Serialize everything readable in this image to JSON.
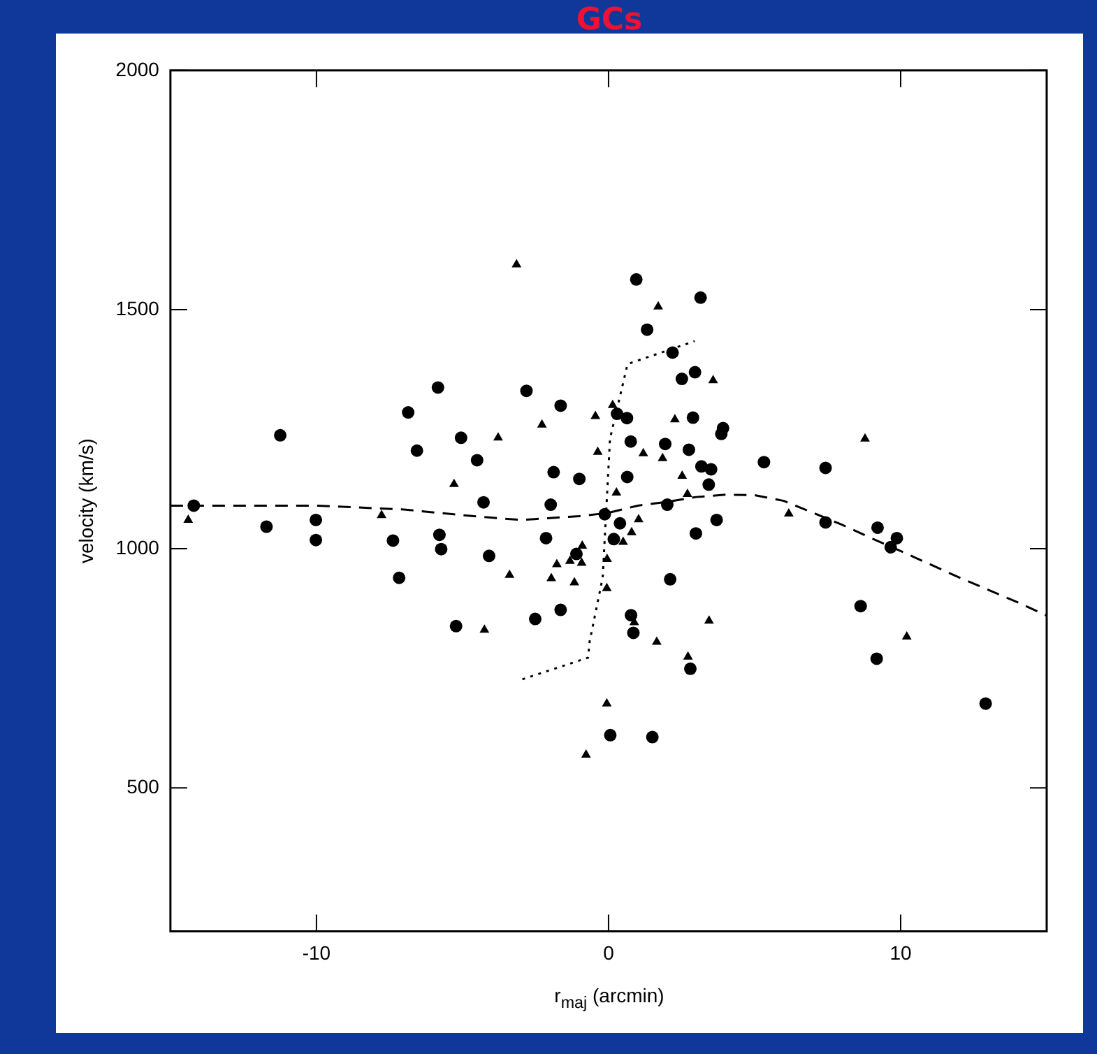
{
  "chart_data": {
    "type": "scatter",
    "title": "GCs",
    "xlabel": "r$_{maj}$ (arcmin)",
    "ylabel": "velocity (km/s)",
    "xlim": [
      -15,
      15
    ],
    "ylim": [
      200,
      2000
    ],
    "xticks": [
      -10,
      0,
      10
    ],
    "yticks": [
      500,
      1000,
      1500,
      2000
    ],
    "grid": false,
    "legend": false,
    "series": [
      {
        "type": "scatter",
        "marker": "circle",
        "color": "#000000",
        "x": [
          -14.2,
          -11.24,
          -11.71,
          -10.02,
          -10.02,
          -6.86,
          -5.84,
          -6.56,
          -5.05,
          -4.5,
          -4.28,
          -5.79,
          -5.73,
          -7.38,
          -4.09,
          -2.81,
          -1.64,
          -1.88,
          -1.0,
          -1.98,
          -2.14,
          -0.13,
          -1.1,
          0.95,
          3.15,
          1.32,
          2.19,
          2.51,
          2.96,
          0.29,
          0.63,
          2.89,
          3.92,
          3.86,
          0.76,
          1.94,
          2.75,
          0.64,
          3.18,
          3.51,
          3.43,
          5.32,
          2.01,
          3.7,
          2.99,
          0.39,
          0.18,
          -7.17,
          -5.22,
          -2.51,
          -1.64,
          0.06,
          2.11,
          0.77,
          0.85,
          2.8,
          1.5,
          7.43,
          7.43,
          9.21,
          9.87,
          9.66,
          8.63,
          9.18,
          12.91
        ],
        "values": [
          1090,
          1237,
          1046,
          1060,
          1018,
          1285,
          1337,
          1205,
          1232,
          1185,
          1097,
          1029,
          999,
          1017,
          985,
          1330,
          1299,
          1160,
          1146,
          1092,
          1022,
          1072,
          989,
          1563,
          1525,
          1458,
          1410,
          1355,
          1369,
          1282,
          1273,
          1274,
          1252,
          1240,
          1224,
          1219,
          1207,
          1150,
          1172,
          1166,
          1134,
          1181,
          1092,
          1060,
          1032,
          1053,
          1020,
          939,
          838,
          853,
          872,
          610,
          936,
          861,
          824,
          749,
          606,
          1169,
          1055,
          1044,
          1022,
          1003,
          880,
          770,
          676
        ]
      },
      {
        "type": "scatter",
        "marker": "triangle",
        "color": "#000000",
        "x": [
          -14.39,
          -3.15,
          -7.77,
          -5.29,
          -3.78,
          -2.28,
          -0.45,
          -0.37,
          -0.9,
          1.7,
          3.58,
          0.14,
          2.27,
          1.19,
          1.85,
          2.52,
          0.27,
          2.7,
          6.17,
          1.03,
          0.79,
          0.5,
          -0.05,
          -1.77,
          -1.32,
          -0.92,
          -3.39,
          -1.96,
          -1.17,
          -0.06,
          -4.25,
          -0.06,
          -0.77,
          0.88,
          3.44,
          1.65,
          2.72,
          8.78,
          10.21
        ],
        "values": [
          1060,
          1594,
          1070,
          1135,
          1232,
          1259,
          1277,
          1202,
          1006,
          1506,
          1352,
          1300,
          1270,
          1199,
          1189,
          1152,
          1117,
          1114,
          1073,
          1061,
          1034,
          1014,
          978,
          967,
          974,
          970,
          945,
          938,
          929,
          917,
          830,
          676,
          569,
          846,
          849,
          805,
          774,
          1230,
          816
        ]
      },
      {
        "type": "line",
        "marker": "none",
        "line_style": "dashed",
        "color": "#000000",
        "x": [
          -15,
          -10,
          -7,
          -5,
          -3,
          -1,
          0,
          1,
          2,
          3,
          4,
          5,
          6,
          7,
          8,
          9,
          10,
          12,
          14,
          15
        ],
        "values": [
          1090,
          1090,
          1082,
          1070,
          1060,
          1068,
          1075,
          1090,
          1098,
          1108,
          1113,
          1112,
          1100,
          1075,
          1050,
          1022,
          995,
          940,
          888,
          860
        ]
      },
      {
        "type": "line",
        "marker": "none",
        "line_style": "dotted",
        "color": "#000000",
        "x": [
          -2.95,
          -0.7,
          -0.65,
          -0.2,
          0.05,
          0.65,
          2.95
        ],
        "values": [
          727,
          772,
          805,
          940,
          1230,
          1386,
          1434
        ]
      }
    ]
  }
}
